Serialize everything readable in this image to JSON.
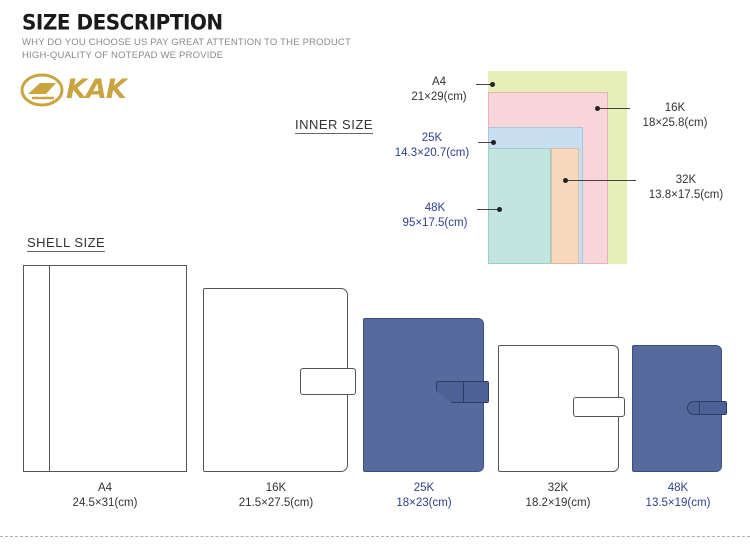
{
  "header": {
    "title": "SIZE DESCRIPTION",
    "subtitle_line1": "WHY DO YOU CHOOSE US PAY GREAT ATTENTION TO THE PRODUCT",
    "subtitle_line2": "HIGH-QUALITY  OF NOTEPAD WE PROVIDE",
    "logo_text": "KAK"
  },
  "inner_size": {
    "label": "INNER SIZE",
    "items": [
      {
        "code": "A4",
        "dims": "21×29(cm)"
      },
      {
        "code": "16K",
        "dims": "18×25.8(cm)"
      },
      {
        "code": "25K",
        "dims": "14.3×20.7(cm)"
      },
      {
        "code": "32K",
        "dims": "13.8×17.5(cm)"
      },
      {
        "code": "48K",
        "dims": "95×17.5(cm)"
      }
    ]
  },
  "shell_size": {
    "label": "SHELL SIZE",
    "items": [
      {
        "code": "A4",
        "dims": "24.5×31(cm)"
      },
      {
        "code": "16K",
        "dims": "21.5×27.5(cm)"
      },
      {
        "code": "25K",
        "dims": "18×23(cm)"
      },
      {
        "code": "32K",
        "dims": "18.2×19(cm)"
      },
      {
        "code": "48K",
        "dims": "13.5×19(cm)"
      }
    ]
  },
  "colors": {
    "navy_text": "#2d3f8f",
    "notebook_blue": "#566a9e",
    "logo_gold": "#c9a441",
    "paper_a4": "#e6efb8",
    "paper_16k": "#f7d5d9",
    "paper_25k": "#c7dff0",
    "paper_32k": "#f8d9be",
    "paper_48k": "#c2e6df"
  }
}
